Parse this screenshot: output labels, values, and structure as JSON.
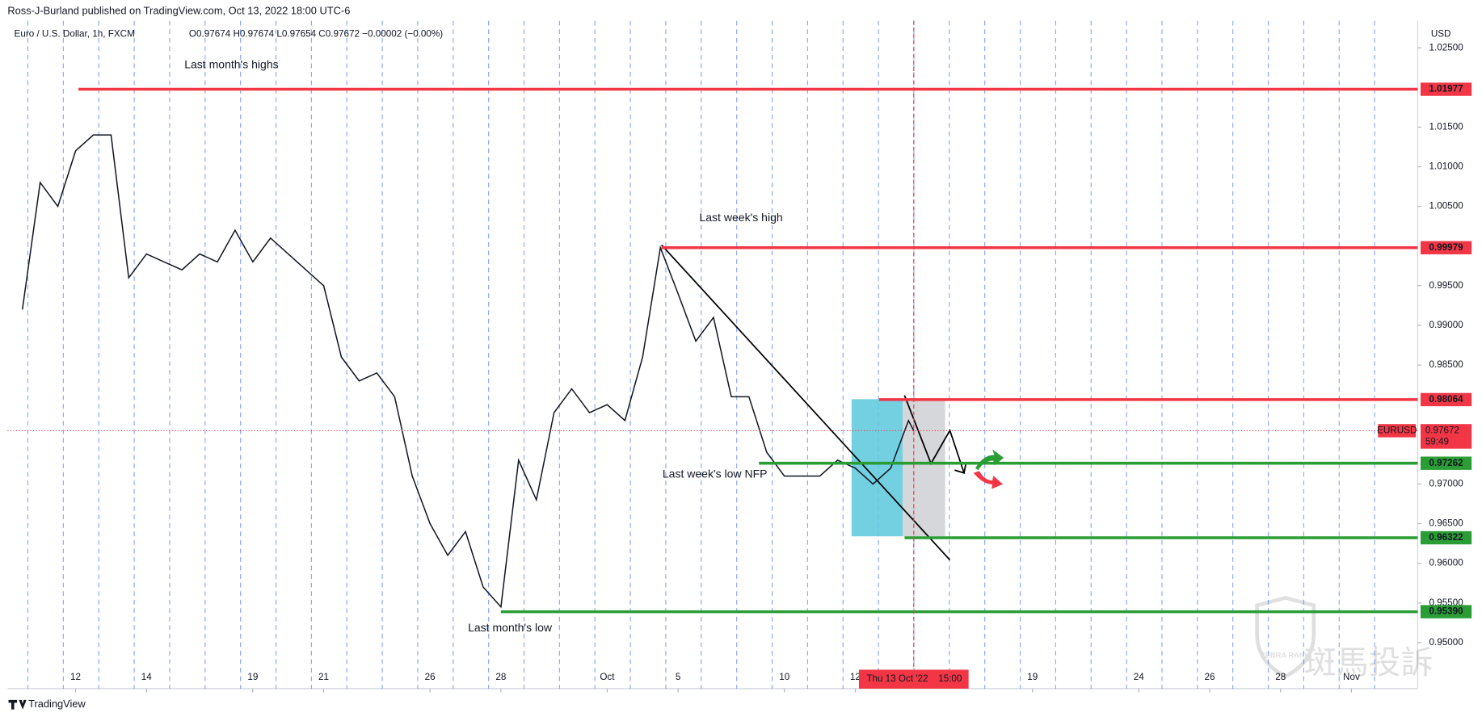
{
  "header": {
    "published": "Ross-J-Burland published on TradingView.com, Oct 13, 2022 18:00 UTC-6",
    "logo": "TradingView",
    "watermark_brand": "ZEBRA RANK",
    "watermark_text": "斑馬投訴"
  },
  "chart_data": {
    "type": "line",
    "title": "Euro / U.S. Dollar, 1h, FXCM",
    "ohlc": "O0.97674  H0.97674  L0.97654  C0.97672  −0.00002 (−0.00%)",
    "y_unit": "USD",
    "color": "#131722",
    "x": [
      -1.5,
      -1,
      -0.5,
      0,
      0.5,
      1,
      1.5,
      2,
      2.5,
      3,
      3.5,
      4,
      4.5,
      5,
      5.5,
      6,
      6.5,
      7,
      7.5,
      8,
      8.5,
      9,
      9.5,
      10,
      10.5,
      11,
      11.5,
      12,
      12.5,
      13,
      13.5,
      14,
      14.5,
      15,
      15.5,
      16,
      16.5,
      17,
      17.5,
      18,
      18.5,
      19,
      19.5,
      20,
      20.5,
      21,
      21.5,
      22,
      22.5,
      23,
      23.5,
      23.65
    ],
    "values": [
      0.992,
      1.008,
      1.005,
      1.012,
      1.014,
      1.014,
      0.996,
      0.999,
      0.998,
      0.997,
      0.999,
      0.998,
      1.002,
      0.998,
      1.001,
      0.999,
      0.997,
      0.995,
      0.986,
      0.983,
      0.984,
      0.981,
      0.971,
      0.965,
      0.961,
      0.964,
      0.957,
      0.9545,
      0.973,
      0.968,
      0.979,
      0.982,
      0.979,
      0.98,
      0.978,
      0.986,
      0.9998,
      0.994,
      0.988,
      0.991,
      0.981,
      0.981,
      0.974,
      0.971,
      0.971,
      0.971,
      0.973,
      0.972,
      0.97,
      0.972,
      0.978,
      0.97672
    ],
    "xlim": [
      -1.92,
      37.87
    ],
    "ylim": [
      0.9442,
      1.0284
    ],
    "xticks": [
      {
        "value": 0,
        "label": "12"
      },
      {
        "value": 2,
        "label": "14"
      },
      {
        "value": 5,
        "label": "19"
      },
      {
        "value": 7,
        "label": "21"
      },
      {
        "value": 10,
        "label": "26"
      },
      {
        "value": 12,
        "label": "28"
      },
      {
        "value": 15,
        "label": "Oct"
      },
      {
        "value": 17,
        "label": "5"
      },
      {
        "value": 20,
        "label": "10"
      },
      {
        "value": 22,
        "label": "12"
      },
      {
        "value": 27,
        "label": "19"
      },
      {
        "value": 30,
        "label": "24"
      },
      {
        "value": 32,
        "label": "26"
      },
      {
        "value": 34,
        "label": "28"
      },
      {
        "value": 36,
        "label": "Nov"
      }
    ],
    "yticks": [
      {
        "value": 1.025,
        "label": "1.02500"
      },
      {
        "value": 1.015,
        "label": "1.01500"
      },
      {
        "value": 1.01,
        "label": "1.01000"
      },
      {
        "value": 1.005,
        "label": "1.00500"
      },
      {
        "value": 0.995,
        "label": "0.99500"
      },
      {
        "value": 0.99,
        "label": "0.99000"
      },
      {
        "value": 0.985,
        "label": "0.98500"
      },
      {
        "value": 0.97,
        "label": "0.97000"
      },
      {
        "value": 0.965,
        "label": "0.96500"
      },
      {
        "value": 0.96,
        "label": "0.96000"
      },
      {
        "value": 0.955,
        "label": "0.95500"
      },
      {
        "value": 0.95,
        "label": "0.95000"
      }
    ],
    "levels": [
      {
        "price": 1.01977,
        "start": 0.08,
        "color": "#f23645"
      },
      {
        "price": 0.99979,
        "start": 16.53,
        "color": "#f23645"
      },
      {
        "price": 0.98064,
        "start": 22.67,
        "color": "#f23645"
      },
      {
        "price": 0.97262,
        "start": 19.28,
        "color": "#2a9d35"
      },
      {
        "price": 0.96322,
        "start": 23.39,
        "color": "#2a9d35"
      },
      {
        "price": 0.9539,
        "label": "0.95390",
        "start": 12.0,
        "color": "#2a9d35"
      }
    ],
    "annotations": [
      {
        "text": "Last month's highs",
        "x": 3.07,
        "y": 1.0228
      },
      {
        "text": "Last week's high",
        "x": 17.6,
        "y": 1.0035
      },
      {
        "text": "Last week's low NFP",
        "x": 16.56,
        "y": 0.9712
      },
      {
        "text": "Last month's low",
        "x": 11.07,
        "y": 0.9518
      }
    ],
    "current": {
      "symbol": "EURUSD",
      "price": 0.97672,
      "countdown": "59:49",
      "color": "#f23645"
    },
    "crosshair": {
      "x": 23.65,
      "label": "Thu 13 Oct '22",
      "time": "15:00"
    }
  }
}
